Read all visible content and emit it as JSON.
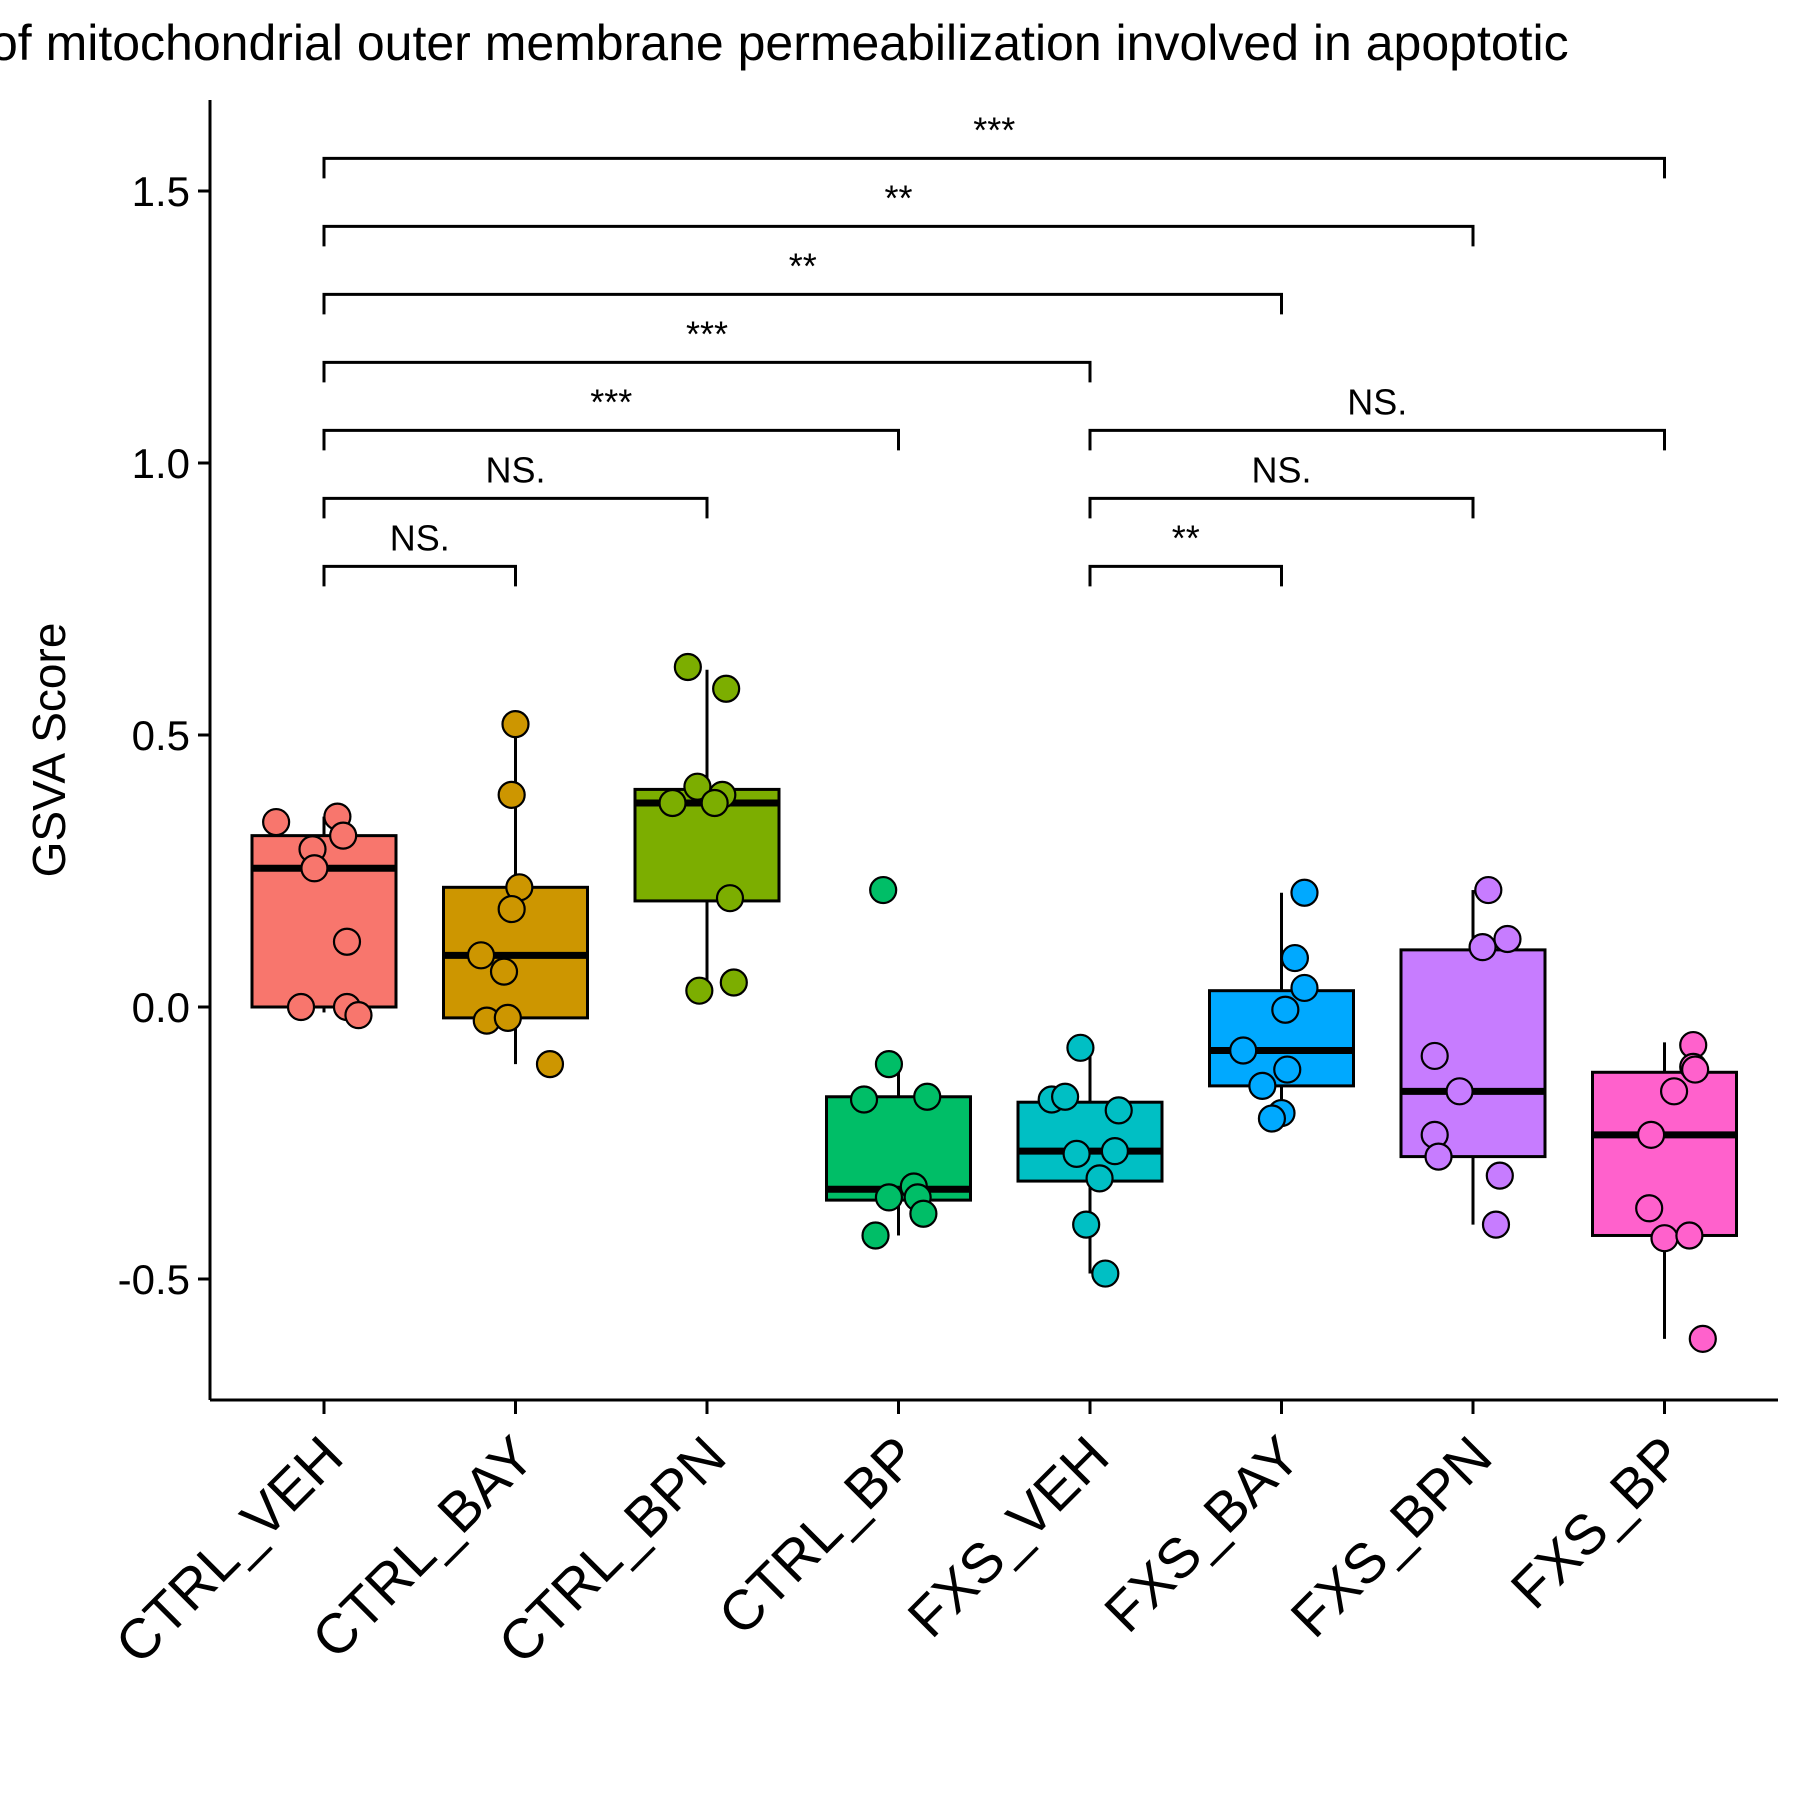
{
  "chart_data": {
    "type": "box",
    "title": "of mitochondrial outer membrane permeabilization involved in apoptotic",
    "xlabel": "",
    "ylabel": "GSVA Score",
    "ylim": [
      -0.7,
      1.65
    ],
    "yticks": [
      "-0.5",
      "0.0",
      "0.5",
      "1.0",
      "1.5"
    ],
    "grid": false,
    "legend": "none",
    "categories": [
      "CTRL_VEH",
      "CTRL_BAY",
      "CTRL_BPN",
      "CTRL_BP",
      "FXS_VEH",
      "FXS_BAY",
      "FXS_BPN",
      "FXS_BP"
    ],
    "colors": [
      "#F8766D",
      "#CD9600",
      "#7CAE00",
      "#00BE67",
      "#00BFC4",
      "#00A9FF",
      "#C77CFF",
      "#FF61CC"
    ],
    "boxes": [
      {
        "q1": 0.0,
        "median": 0.255,
        "q3": 0.315,
        "whisker_low": -0.01,
        "whisker_high": 0.35
      },
      {
        "q1": -0.02,
        "median": 0.095,
        "q3": 0.22,
        "whisker_low": -0.105,
        "whisker_high": 0.52
      },
      {
        "q1": 0.195,
        "median": 0.375,
        "q3": 0.4,
        "whisker_low": 0.03,
        "whisker_high": 0.62
      },
      {
        "q1": -0.355,
        "median": -0.335,
        "q3": -0.165,
        "whisker_low": -0.42,
        "whisker_high": -0.11
      },
      {
        "q1": -0.32,
        "median": -0.265,
        "q3": -0.175,
        "whisker_low": -0.49,
        "whisker_high": -0.075
      },
      {
        "q1": -0.145,
        "median": -0.08,
        "q3": 0.03,
        "whisker_low": -0.205,
        "whisker_high": 0.21
      },
      {
        "q1": -0.275,
        "median": -0.155,
        "q3": 0.105,
        "whisker_low": -0.4,
        "whisker_high": 0.215
      },
      {
        "q1": -0.42,
        "median": -0.235,
        "q3": -0.12,
        "whisker_low": -0.61,
        "whisker_high": -0.065
      }
    ],
    "points": [
      [
        {
          "dx": -0.25,
          "y": 0.34
        },
        {
          "dx": 0.07,
          "y": 0.35
        },
        {
          "dx": -0.06,
          "y": 0.29
        },
        {
          "dx": 0.1,
          "y": 0.315
        },
        {
          "dx": -0.05,
          "y": 0.255
        },
        {
          "dx": 0.12,
          "y": 0.12
        },
        {
          "dx": -0.12,
          "y": 0.0
        },
        {
          "dx": 0.12,
          "y": 0.0
        },
        {
          "dx": 0.18,
          "y": -0.015
        }
      ],
      [
        {
          "dx": 0.0,
          "y": 0.52
        },
        {
          "dx": -0.02,
          "y": 0.39
        },
        {
          "dx": 0.02,
          "y": 0.22
        },
        {
          "dx": -0.02,
          "y": 0.18
        },
        {
          "dx": -0.18,
          "y": 0.095
        },
        {
          "dx": -0.06,
          "y": 0.065
        },
        {
          "dx": -0.15,
          "y": -0.025
        },
        {
          "dx": -0.04,
          "y": -0.02
        },
        {
          "dx": 0.18,
          "y": -0.105
        }
      ],
      [
        {
          "dx": -0.1,
          "y": 0.625
        },
        {
          "dx": 0.1,
          "y": 0.585
        },
        {
          "dx": -0.05,
          "y": 0.405
        },
        {
          "dx": 0.08,
          "y": 0.39
        },
        {
          "dx": -0.18,
          "y": 0.375
        },
        {
          "dx": 0.04,
          "y": 0.375
        },
        {
          "dx": 0.12,
          "y": 0.2
        },
        {
          "dx": -0.04,
          "y": 0.03
        },
        {
          "dx": 0.14,
          "y": 0.045
        }
      ],
      [
        {
          "dx": -0.08,
          "y": 0.215
        },
        {
          "dx": -0.05,
          "y": -0.105
        },
        {
          "dx": -0.18,
          "y": -0.17
        },
        {
          "dx": 0.15,
          "y": -0.165
        },
        {
          "dx": 0.08,
          "y": -0.33
        },
        {
          "dx": -0.05,
          "y": -0.35
        },
        {
          "dx": 0.1,
          "y": -0.35
        },
        {
          "dx": 0.13,
          "y": -0.38
        },
        {
          "dx": -0.12,
          "y": -0.42
        }
      ],
      [
        {
          "dx": -0.05,
          "y": -0.075
        },
        {
          "dx": -0.2,
          "y": -0.17
        },
        {
          "dx": -0.13,
          "y": -0.165
        },
        {
          "dx": 0.15,
          "y": -0.19
        },
        {
          "dx": -0.07,
          "y": -0.27
        },
        {
          "dx": 0.13,
          "y": -0.265
        },
        {
          "dx": 0.05,
          "y": -0.315
        },
        {
          "dx": -0.02,
          "y": -0.4
        },
        {
          "dx": 0.08,
          "y": -0.49
        }
      ],
      [
        {
          "dx": 0.12,
          "y": 0.21
        },
        {
          "dx": 0.07,
          "y": 0.09
        },
        {
          "dx": 0.12,
          "y": 0.035
        },
        {
          "dx": 0.02,
          "y": -0.005
        },
        {
          "dx": -0.2,
          "y": -0.08
        },
        {
          "dx": 0.03,
          "y": -0.115
        },
        {
          "dx": -0.1,
          "y": -0.145
        },
        {
          "dx": 0.0,
          "y": -0.195
        },
        {
          "dx": -0.05,
          "y": -0.205
        }
      ],
      [
        {
          "dx": 0.08,
          "y": 0.215
        },
        {
          "dx": 0.18,
          "y": 0.125
        },
        {
          "dx": 0.05,
          "y": 0.11
        },
        {
          "dx": -0.2,
          "y": -0.09
        },
        {
          "dx": -0.07,
          "y": -0.155
        },
        {
          "dx": -0.2,
          "y": -0.235
        },
        {
          "dx": -0.18,
          "y": -0.275
        },
        {
          "dx": 0.14,
          "y": -0.31
        },
        {
          "dx": 0.12,
          "y": -0.4
        }
      ],
      [
        {
          "dx": 0.15,
          "y": -0.07
        },
        {
          "dx": 0.15,
          "y": -0.11
        },
        {
          "dx": 0.16,
          "y": -0.115
        },
        {
          "dx": 0.05,
          "y": -0.155
        },
        {
          "dx": -0.07,
          "y": -0.235
        },
        {
          "dx": -0.08,
          "y": -0.37
        },
        {
          "dx": 0.0,
          "y": -0.425
        },
        {
          "dx": 0.13,
          "y": -0.42
        },
        {
          "dx": 0.2,
          "y": -0.61
        }
      ]
    ],
    "comparisons": [
      {
        "from": 1,
        "to": 2,
        "y": 0.81,
        "label": "NS."
      },
      {
        "from": 1,
        "to": 3,
        "y": 0.935,
        "label": "NS."
      },
      {
        "from": 1,
        "to": 4,
        "y": 1.06,
        "label": "***"
      },
      {
        "from": 1,
        "to": 5,
        "y": 1.185,
        "label": "***"
      },
      {
        "from": 1,
        "to": 6,
        "y": 1.31,
        "label": "**"
      },
      {
        "from": 1,
        "to": 7,
        "y": 1.435,
        "label": "**"
      },
      {
        "from": 1,
        "to": 8,
        "y": 1.56,
        "label": "***"
      },
      {
        "from": 5,
        "to": 6,
        "y": 0.81,
        "label": "**"
      },
      {
        "from": 5,
        "to": 7,
        "y": 0.935,
        "label": "NS."
      },
      {
        "from": 5,
        "to": 8,
        "y": 1.06,
        "label": "NS."
      }
    ]
  }
}
